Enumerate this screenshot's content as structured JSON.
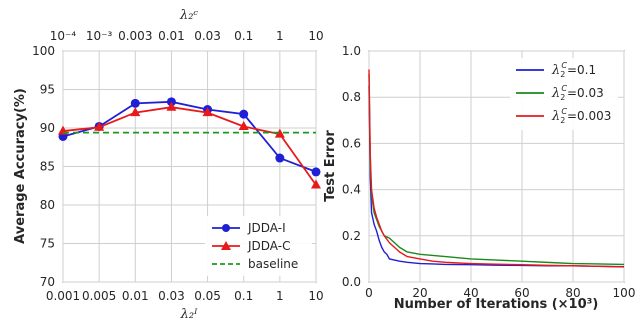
{
  "chart_data": [
    {
      "type": "line",
      "title": "",
      "xlabel": "λ₂ᴵ",
      "top_xlabel": "λ₂ᶜ",
      "ylabel": "Average Accuracy(%)",
      "categories": [
        "0.001",
        "0.005",
        "0.01",
        "0.03",
        "0.05",
        "0.1",
        "1",
        "10"
      ],
      "top_tick_labels": [
        "10⁻⁴",
        "10⁻³",
        "0.003",
        "0.01",
        "0.03",
        "0.1",
        "1",
        "10"
      ],
      "ylim": [
        70,
        100
      ],
      "yticks": [
        70,
        75,
        80,
        85,
        90,
        95,
        100
      ],
      "grid": true,
      "legend_position": "lower-right",
      "series": [
        {
          "name": "JDDA-I",
          "color": "#1f1fd6",
          "marker": "circle",
          "values": [
            88.9,
            90.2,
            93.2,
            93.4,
            92.4,
            91.8,
            86.1,
            84.3
          ]
        },
        {
          "name": "JDDA-C",
          "color": "#e8191b",
          "marker": "triangle",
          "values": [
            89.6,
            90.1,
            92.0,
            92.7,
            92.0,
            90.2,
            89.2,
            82.6
          ]
        },
        {
          "name": "baseline",
          "color": "#1a9a1a",
          "style": "dashed",
          "values": [
            89.4,
            89.4,
            89.4,
            89.4,
            89.4,
            89.4,
            89.4,
            89.4
          ]
        }
      ]
    },
    {
      "type": "line",
      "title": "",
      "xlabel": "Number of Iterations (×10³)",
      "ylabel": "Test Error",
      "xlim": [
        0,
        100
      ],
      "ylim": [
        0.0,
        1.0
      ],
      "xticks": [
        0,
        20,
        40,
        60,
        80,
        100
      ],
      "yticks": [
        0.0,
        0.2,
        0.4,
        0.6,
        0.8,
        1.0
      ],
      "grid": true,
      "legend_position": "upper-right",
      "series": [
        {
          "name": "λ₂ᶜ=0.1",
          "legend_math": "λ",
          "legend_sub": "2",
          "legend_sup": "C",
          "legend_value": "=0.1",
          "color": "#1f1fd6",
          "x": [
            0,
            0.5,
            1,
            2,
            3,
            4,
            5,
            6,
            7,
            8,
            10,
            12,
            15,
            20,
            25,
            30,
            40,
            50,
            60,
            70,
            80,
            90,
            100
          ],
          "y": [
            0.85,
            0.45,
            0.3,
            0.25,
            0.22,
            0.18,
            0.15,
            0.13,
            0.12,
            0.1,
            0.095,
            0.09,
            0.085,
            0.08,
            0.078,
            0.076,
            0.075,
            0.073,
            0.072,
            0.07,
            0.07,
            0.068,
            0.066
          ]
        },
        {
          "name": "λ₂ᶜ=0.03",
          "legend_math": "λ",
          "legend_sub": "2",
          "legend_sup": "C",
          "legend_value": "=0.03",
          "color": "#1a8a1a",
          "x": [
            0,
            0.5,
            1,
            2,
            3,
            4,
            5,
            6,
            8,
            10,
            12,
            15,
            20,
            25,
            30,
            40,
            50,
            60,
            70,
            80,
            90,
            100
          ],
          "y": [
            0.9,
            0.5,
            0.38,
            0.3,
            0.27,
            0.24,
            0.22,
            0.2,
            0.19,
            0.17,
            0.15,
            0.13,
            0.12,
            0.115,
            0.11,
            0.1,
            0.095,
            0.09,
            0.085,
            0.08,
            0.078,
            0.076
          ]
        },
        {
          "name": "λ₂ᶜ=0.003",
          "legend_math": "λ",
          "legend_sub": "2",
          "legend_sup": "C",
          "legend_value": "=0.003",
          "color": "#e8191b",
          "x": [
            0,
            0.5,
            1,
            2,
            3,
            4,
            5,
            6,
            8,
            10,
            12,
            15,
            20,
            25,
            30,
            40,
            50,
            60,
            70,
            80,
            90,
            100
          ],
          "y": [
            0.92,
            0.55,
            0.4,
            0.32,
            0.28,
            0.25,
            0.22,
            0.2,
            0.17,
            0.15,
            0.13,
            0.11,
            0.1,
            0.09,
            0.085,
            0.08,
            0.077,
            0.075,
            0.072,
            0.07,
            0.068,
            0.065
          ]
        }
      ]
    }
  ]
}
